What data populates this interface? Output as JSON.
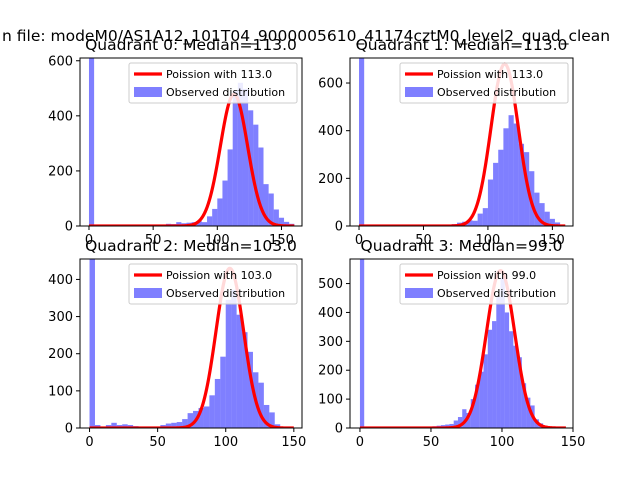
{
  "figure": {
    "suptitle": "n file: modeM0/AS1A12_101T04_9000005610_41174cztM0_level2_quad_clean"
  },
  "chart_data": [
    {
      "type": "bar",
      "title": "Quadrant 0: Median=113.0",
      "xlim": [
        -7,
        166
      ],
      "ylim": [
        0,
        610
      ],
      "xticks": [
        0,
        50,
        100,
        150
      ],
      "yticks": [
        0,
        200,
        400,
        600
      ],
      "xtick_labels": [
        "0",
        "50",
        "100",
        "150"
      ],
      "ytick_labels": [
        "0",
        "200",
        "400",
        "600"
      ],
      "legend": {
        "position": "upper right",
        "curve_label": "Poission with 113.0",
        "hist_label": "Observed distribution"
      },
      "series": [
        {
          "name": "Poission with 113.0",
          "kind": "line",
          "color": "#ff0000",
          "mean": 113.0,
          "peak": 478,
          "x_range": [
            0,
            160
          ]
        },
        {
          "name": "Observed distribution",
          "kind": "histogram",
          "color": "#0000ff",
          "bin_width": 4,
          "bins": [
            [
              0,
              610
            ],
            [
              56,
              3
            ],
            [
              60,
              8
            ],
            [
              64,
              7
            ],
            [
              68,
              14
            ],
            [
              72,
              10
            ],
            [
              76,
              12
            ],
            [
              80,
              14
            ],
            [
              84,
              17
            ],
            [
              88,
              14
            ],
            [
              92,
              35
            ],
            [
              96,
              62
            ],
            [
              100,
              100
            ],
            [
              104,
              165
            ],
            [
              108,
              278
            ],
            [
              112,
              490
            ],
            [
              116,
              520
            ],
            [
              120,
              498
            ],
            [
              124,
              420
            ],
            [
              128,
              368
            ],
            [
              132,
              285
            ],
            [
              136,
              152
            ],
            [
              140,
              118
            ],
            [
              144,
              60
            ],
            [
              148,
              30
            ],
            [
              152,
              15
            ],
            [
              156,
              8
            ]
          ]
        }
      ]
    },
    {
      "type": "bar",
      "title": "Quadrant 1: Median=113.0",
      "xlim": [
        -7,
        166
      ],
      "ylim": [
        0,
        705
      ],
      "xticks": [
        0,
        50,
        100,
        150
      ],
      "yticks": [
        0,
        200,
        400,
        600
      ],
      "xtick_labels": [
        "0",
        "50",
        "100",
        "150"
      ],
      "ytick_labels": [
        "0",
        "200",
        "400",
        "600"
      ],
      "legend": {
        "position": "upper right",
        "curve_label": "Poission with 113.0",
        "hist_label": "Observed distribution"
      },
      "series": [
        {
          "name": "Poission with 113.0",
          "kind": "line",
          "color": "#ff0000",
          "mean": 113.0,
          "peak": 680,
          "x_range": [
            0,
            160
          ]
        },
        {
          "name": "Observed distribution",
          "kind": "histogram",
          "color": "#0000ff",
          "bin_width": 4,
          "bins": [
            [
              0,
              705
            ],
            [
              52,
              5
            ],
            [
              56,
              6
            ],
            [
              60,
              4
            ],
            [
              64,
              6
            ],
            [
              68,
              6
            ],
            [
              72,
              8
            ],
            [
              76,
              14
            ],
            [
              80,
              18
            ],
            [
              84,
              24
            ],
            [
              88,
              22
            ],
            [
              92,
              52
            ],
            [
              96,
              75
            ],
            [
              100,
              195
            ],
            [
              104,
              265
            ],
            [
              108,
              320
            ],
            [
              112,
              410
            ],
            [
              116,
              465
            ],
            [
              120,
              430
            ],
            [
              124,
              345
            ],
            [
              128,
              310
            ],
            [
              132,
              230
            ],
            [
              136,
              140
            ],
            [
              140,
              96
            ],
            [
              144,
              60
            ],
            [
              148,
              30
            ],
            [
              152,
              15
            ]
          ]
        }
      ]
    },
    {
      "type": "bar",
      "title": "Quadrant 2: Median=103.0",
      "xlim": [
        -7,
        156
      ],
      "ylim": [
        0,
        455
      ],
      "xticks": [
        0,
        50,
        100,
        150
      ],
      "yticks": [
        0,
        100,
        200,
        300,
        400
      ],
      "xtick_labels": [
        "0",
        "50",
        "100",
        "150"
      ],
      "ytick_labels": [
        "0",
        "100",
        "200",
        "300",
        "400"
      ],
      "legend": {
        "position": "upper right",
        "curve_label": "Poission with 103.0",
        "hist_label": "Observed distribution"
      },
      "series": [
        {
          "name": "Poission with 103.0",
          "kind": "line",
          "color": "#ff0000",
          "mean": 103.0,
          "peak": 430,
          "x_range": [
            0,
            150
          ]
        },
        {
          "name": "Observed distribution",
          "kind": "histogram",
          "color": "#0000ff",
          "bin_width": 4,
          "bins": [
            [
              0,
              455
            ],
            [
              4,
              8
            ],
            [
              12,
              8
            ],
            [
              16,
              14
            ],
            [
              20,
              8
            ],
            [
              24,
              10
            ],
            [
              28,
              8
            ],
            [
              32,
              5
            ],
            [
              48,
              4
            ],
            [
              52,
              8
            ],
            [
              56,
              12
            ],
            [
              60,
              14
            ],
            [
              64,
              16
            ],
            [
              68,
              24
            ],
            [
              72,
              40
            ],
            [
              76,
              46
            ],
            [
              80,
              54
            ],
            [
              84,
              58
            ],
            [
              88,
              88
            ],
            [
              92,
              132
            ],
            [
              96,
              192
            ],
            [
              100,
              345
            ],
            [
              104,
              372
            ],
            [
              108,
              305
            ],
            [
              112,
              258
            ],
            [
              116,
              205
            ],
            [
              120,
              150
            ],
            [
              124,
              122
            ],
            [
              128,
              62
            ],
            [
              132,
              42
            ],
            [
              136,
              10
            ],
            [
              140,
              4
            ]
          ]
        }
      ]
    },
    {
      "type": "bar",
      "title": "Quadrant 3: Median=99.0",
      "xlim": [
        -7,
        150
      ],
      "ylim": [
        0,
        585
      ],
      "xticks": [
        0,
        50,
        100,
        150
      ],
      "yticks": [
        0,
        100,
        200,
        300,
        400,
        500
      ],
      "xtick_labels": [
        "0",
        "50",
        "100",
        "150"
      ],
      "ytick_labels": [
        "0",
        "100",
        "200",
        "300",
        "400",
        "500"
      ],
      "legend": {
        "position": "upper right",
        "curve_label": "Poission with 99.0",
        "hist_label": "Observed distribution"
      },
      "series": [
        {
          "name": "Poission with 99.0",
          "kind": "line",
          "color": "#ff0000",
          "mean": 99.0,
          "peak": 545,
          "x_range": [
            0,
            145
          ]
        },
        {
          "name": "Observed distribution",
          "kind": "histogram",
          "color": "#0000ff",
          "bin_width": 3,
          "bins": [
            [
              0,
              585
            ],
            [
              45,
              5
            ],
            [
              51,
              6
            ],
            [
              54,
              8
            ],
            [
              57,
              10
            ],
            [
              60,
              12
            ],
            [
              63,
              14
            ],
            [
              66,
              26
            ],
            [
              69,
              38
            ],
            [
              72,
              65
            ],
            [
              75,
              52
            ],
            [
              78,
              100
            ],
            [
              81,
              150
            ],
            [
              84,
              195
            ],
            [
              87,
              255
            ],
            [
              90,
              340
            ],
            [
              93,
              370
            ],
            [
              96,
              455
            ],
            [
              99,
              520
            ],
            [
              102,
              400
            ],
            [
              105,
              335
            ],
            [
              108,
              285
            ],
            [
              111,
              245
            ],
            [
              114,
              155
            ],
            [
              117,
              105
            ],
            [
              120,
              78
            ],
            [
              123,
              30
            ],
            [
              126,
              16
            ],
            [
              129,
              8
            ],
            [
              132,
              4
            ]
          ]
        }
      ]
    }
  ]
}
